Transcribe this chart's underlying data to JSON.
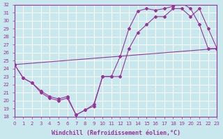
{
  "xlabel": "Windchill (Refroidissement éolien,°C)",
  "bg_color": "#c8e8ee",
  "line_color": "#993399",
  "grid_color": "#aadddd",
  "xlim": [
    0,
    23
  ],
  "ylim": [
    18,
    32
  ],
  "yticks": [
    18,
    19,
    20,
    21,
    22,
    23,
    24,
    25,
    26,
    27,
    28,
    29,
    30,
    31,
    32
  ],
  "xticks": [
    0,
    1,
    2,
    3,
    4,
    5,
    6,
    7,
    8,
    9,
    10,
    11,
    12,
    13,
    14,
    15,
    16,
    17,
    18,
    19,
    20,
    21,
    22,
    23
  ],
  "series1_x": [
    0,
    1,
    2,
    3,
    4,
    5,
    6,
    7,
    8,
    9,
    10,
    11,
    12,
    13,
    14,
    15,
    16,
    17,
    18,
    19,
    20,
    21,
    22,
    23
  ],
  "series1_y": [
    24.5,
    22.8,
    22.2,
    21.0,
    20.3,
    20.0,
    20.3,
    18.2,
    18.8,
    19.3,
    23.0,
    23.0,
    25.5,
    29.0,
    31.2,
    31.5,
    31.3,
    31.5,
    31.8,
    32.2,
    31.5,
    29.5,
    26.5,
    26.5
  ],
  "series2_x": [
    0,
    1,
    2,
    3,
    4,
    5,
    6,
    7,
    8,
    9,
    10,
    11,
    12,
    13,
    14,
    15,
    16,
    17,
    18,
    19,
    20,
    21,
    22,
    23
  ],
  "series2_y": [
    24.5,
    22.8,
    22.2,
    21.2,
    20.5,
    20.2,
    20.5,
    18.2,
    18.8,
    19.5,
    23.0,
    23.0,
    23.0,
    26.5,
    28.5,
    29.5,
    30.5,
    30.5,
    31.5,
    31.5,
    30.5,
    31.5,
    29.0,
    26.5
  ],
  "series3_x": [
    0,
    23
  ],
  "series3_y": [
    24.5,
    26.5
  ],
  "tick_fontsize": 5,
  "xlabel_fontsize": 6
}
